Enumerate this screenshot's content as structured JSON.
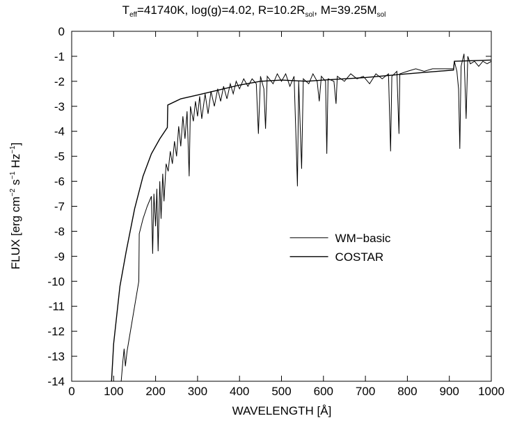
{
  "chart_data": {
    "type": "line",
    "title": [
      {
        "text": "T"
      },
      {
        "sub": "eff"
      },
      {
        "text": "=41740K, log(g)=4.02, R=10.2R"
      },
      {
        "sub": "sol"
      },
      {
        "text": ", M=39.25M"
      },
      {
        "sub": "sol"
      }
    ],
    "x_label": "WAVELENGTH [Å]",
    "y_label": [
      {
        "text": "FLUX [erg cm"
      },
      {
        "sup": "−2"
      },
      {
        "text": " s"
      },
      {
        "sup": "−1"
      },
      {
        "text": " Hz"
      },
      {
        "sup": "−1"
      },
      {
        "text": "]"
      }
    ],
    "xlim": [
      0,
      1000
    ],
    "xticks": [
      0,
      100,
      200,
      300,
      400,
      500,
      600,
      700,
      800,
      900,
      1000
    ],
    "ylim": [
      -14,
      0
    ],
    "yticks": [
      0,
      -1,
      -2,
      -3,
      -4,
      -5,
      -6,
      -7,
      -8,
      -9,
      -10,
      -11,
      -12,
      -13,
      -14
    ],
    "legend_loc": "center right",
    "series": [
      {
        "name": "WM−basic",
        "color": "#000000",
        "x": [
          118,
          122,
          125,
          128,
          132,
          140,
          150,
          160,
          161,
          170,
          180,
          190,
          193,
          196,
          200,
          203,
          206,
          210,
          213,
          217,
          220,
          225,
          230,
          235,
          240,
          245,
          250,
          255,
          260,
          265,
          270,
          275,
          280,
          283,
          290,
          295,
          300,
          305,
          310,
          318,
          325,
          332,
          340,
          348,
          355,
          362,
          370,
          378,
          385,
          392,
          400,
          410,
          420,
          430,
          440,
          445,
          450,
          458,
          462,
          466,
          480,
          490,
          500,
          510,
          520,
          530,
          535,
          538,
          541,
          548,
          552,
          565,
          575,
          585,
          590,
          595,
          605,
          608,
          611,
          625,
          630,
          633,
          650,
          665,
          680,
          695,
          710,
          725,
          740,
          755,
          760,
          763,
          775,
          780,
          782,
          800,
          820,
          840,
          860,
          880,
          900,
          910,
          912,
          918,
          922,
          925,
          928,
          935,
          940,
          944,
          950,
          960,
          970,
          980,
          990,
          1000
        ],
        "values": [
          -14,
          -13.2,
          -12.7,
          -13.4,
          -12.8,
          -12,
          -11,
          -10,
          -8.1,
          -7.5,
          -7,
          -6.6,
          -8.9,
          -6.5,
          -7.8,
          -6.3,
          -8.8,
          -6,
          -7.5,
          -5.7,
          -6.8,
          -5.3,
          -5.6,
          -4.8,
          -5.3,
          -4.4,
          -5,
          -3.8,
          -4.6,
          -3.4,
          -4.3,
          -3.2,
          -5.8,
          -3,
          -3.6,
          -2.8,
          -3.4,
          -2.6,
          -3.5,
          -2.5,
          -3.3,
          -2.4,
          -3,
          -2.3,
          -2.8,
          -2.2,
          -2.7,
          -2.1,
          -2.5,
          -2,
          -2.3,
          -1.9,
          -2.2,
          -1.9,
          -2.1,
          -4.1,
          -1.8,
          -2.3,
          -3.9,
          -1.8,
          -2.1,
          -1.7,
          -2,
          -1.7,
          -2.2,
          -1.8,
          -4.5,
          -6.2,
          -2,
          -5.5,
          -1.9,
          -2.1,
          -1.7,
          -2,
          -2.8,
          -1.8,
          -2,
          -4.9,
          -1.9,
          -2,
          -2.9,
          -1.8,
          -2,
          -1.7,
          -1.9,
          -1.8,
          -2.1,
          -1.7,
          -1.9,
          -1.7,
          -4.8,
          -1.8,
          -1.6,
          -4.1,
          -1.7,
          -1.6,
          -1.5,
          -1.6,
          -1.5,
          -1.5,
          -1.5,
          -1.5,
          -1.2,
          -1.6,
          -2.3,
          -4.7,
          -1.4,
          -0.9,
          -3.5,
          -1,
          -1.3,
          -1.2,
          -1.4,
          -1.2,
          -1.3,
          -1.2
        ]
      },
      {
        "name": "COSTAR",
        "color": "#000000",
        "x": [
          95,
          100,
          115,
          130,
          150,
          170,
          190,
          210,
          228,
          229,
          260,
          300,
          350,
          400,
          450,
          500,
          560,
          600,
          700,
          800,
          910,
          912,
          1000
        ],
        "values": [
          -14,
          -12.5,
          -10.2,
          -8.8,
          -7.1,
          -5.8,
          -4.9,
          -4.3,
          -3.85,
          -2.95,
          -2.7,
          -2.55,
          -2.35,
          -2.15,
          -2,
          -1.95,
          -2,
          -1.95,
          -1.85,
          -1.7,
          -1.55,
          -1.2,
          -1.15
        ]
      }
    ]
  }
}
